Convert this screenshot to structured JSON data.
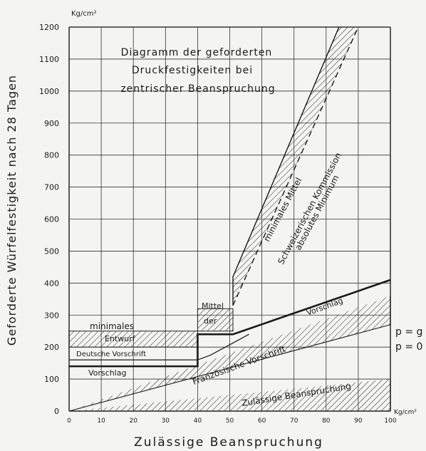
{
  "chart_data": {
    "type": "line",
    "title": [
      "Diagramm der geforderten",
      "Druckfestigkeiten bei",
      "zentrischer Beanspruchung"
    ],
    "xlabel": "Zulässige Beanspruchung",
    "ylabel": "Geforderte Würfelfestigkeit nach 28 Tagen",
    "xunit": "Kg/cm²",
    "yunit": "Kg/cm²",
    "xlim": [
      0,
      100
    ],
    "ylim": [
      0,
      1200
    ],
    "xticks": [
      "0",
      "10",
      "20",
      "30",
      "40",
      "50",
      "60",
      "70",
      "80",
      "90",
      "100"
    ],
    "yticks": [
      "0",
      "100",
      "200",
      "300",
      "400",
      "500",
      "600",
      "700",
      "800",
      "900",
      "1000",
      "1100",
      "1200"
    ],
    "grid": true,
    "labels": {
      "schweiz": "Schweizerischen Kommission",
      "min_mittel": "minimales Mittel",
      "abs_min": "absolutes Minimum",
      "mittel": "Mittel",
      "der": "der",
      "minimales": "minimales",
      "entwurf": "Entwurf",
      "deutsche": "Deutsche Vorschrift",
      "vorschlag_left": "Vorschlag",
      "vorschlag_right": "Vorschlag",
      "pg": "p = g",
      "p0": "p = 0",
      "franz": "Französische Vorschrift",
      "zul": "Zulässige Beanspruchung"
    },
    "series": [
      {
        "name": "Vorschlag",
        "x": [
          0,
          40,
          40,
          51,
          51,
          100
        ],
        "y": [
          140,
          140,
          240,
          240,
          240,
          410
        ]
      },
      {
        "name": "Deutsche Vorschrift",
        "x": [
          0,
          40,
          44,
          56
        ],
        "y": [
          160,
          160,
          175,
          240
        ]
      },
      {
        "name": "minimales Mittel",
        "x": [
          51,
          51,
          84
        ],
        "y": [
          330,
          420,
          1200
        ]
      },
      {
        "name": "absolutes Minimum",
        "x": [
          51,
          90
        ],
        "y": [
          330,
          1200
        ]
      },
      {
        "name": "Französische Vorschrift",
        "x": [
          0,
          100,
          100
        ],
        "y": [
          0,
          270,
          360
        ]
      },
      {
        "name": "Zulässige Beanspruchung",
        "x": [
          0,
          100,
          100
        ],
        "y": [
          0,
          0,
          100
        ]
      }
    ],
    "bands": [
      {
        "name": "Entwurf",
        "x": [
          0,
          40
        ],
        "y": [
          200,
          250
        ]
      },
      {
        "name": "Mittel der",
        "x": [
          40,
          51
        ],
        "y": [
          250,
          320
        ]
      }
    ]
  }
}
